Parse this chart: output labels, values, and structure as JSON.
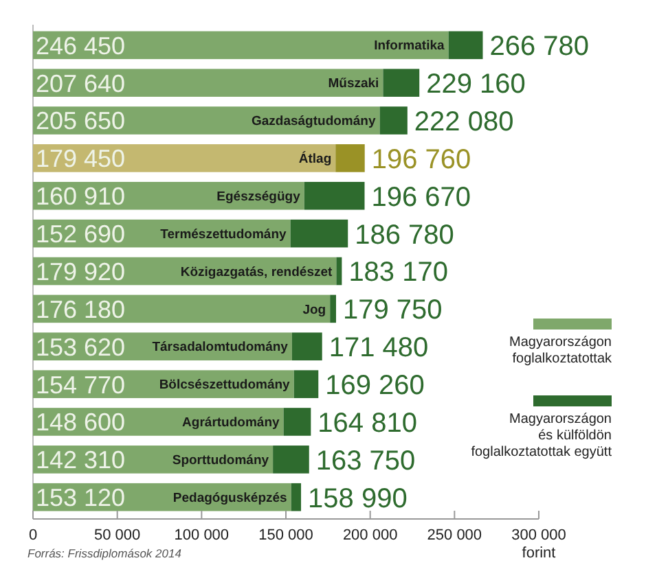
{
  "chart_data": {
    "type": "bar",
    "orientation": "horizontal",
    "stacked": true,
    "categories": [
      "Informatika",
      "Műszaki",
      "Gazdaságtudomány",
      "Átlag",
      "Egészségügy",
      "Természettudomány",
      "Közigazgatás, rendészet",
      "Jog",
      "Társadalomtudomány",
      "Bölcsészettudomány",
      "Agrártudomány",
      "Sporttudomány",
      "Pedagógusképzés"
    ],
    "series": [
      {
        "name": "Magyarországon\nfoglalkoztatottak",
        "color": "#7fa86b",
        "colors": [
          "#7fa86b",
          "#7fa86b",
          "#7fa86b",
          "#c4b870",
          "#7fa86b",
          "#7fa86b",
          "#7fa86b",
          "#7fa86b",
          "#7fa86b",
          "#7fa86b",
          "#7fa86b",
          "#7fa86b",
          "#7fa86b"
        ],
        "values": [
          246450,
          207640,
          205650,
          179450,
          160910,
          152690,
          179920,
          176180,
          153620,
          154770,
          148600,
          142310,
          153120
        ],
        "value_labels": [
          "246 450",
          "207 640",
          "205 650",
          "179 450",
          "160 910",
          "152 690",
          "179 920",
          "176 180",
          "153 620",
          "154 770",
          "148 600",
          "142 310",
          "153 120"
        ]
      },
      {
        "name": "Magyarországon\nés külföldön\nfoglalkoztatottak együtt",
        "color": "#2e6b2e",
        "colors": [
          "#2e6b2e",
          "#2e6b2e",
          "#2e6b2e",
          "#9a9226",
          "#2e6b2e",
          "#2e6b2e",
          "#2e6b2e",
          "#2e6b2e",
          "#2e6b2e",
          "#2e6b2e",
          "#2e6b2e",
          "#2e6b2e",
          "#2e6b2e"
        ],
        "values": [
          20330,
          21520,
          16430,
          17310,
          35760,
          34090,
          3250,
          3570,
          17860,
          14490,
          16210,
          21440,
          5870
        ]
      }
    ],
    "totals": [
      "266 780",
      "229 160",
      "222 080",
      "196 760",
      "196 670",
      "186 780",
      "183 170",
      "179 750",
      "171 480",
      "169 260",
      "164 810",
      "163 750",
      "158 990"
    ],
    "xlim": [
      0,
      300000
    ],
    "xticks": [
      0,
      {
        "value": 50000,
        "label": "50 000"
      },
      {
        "value": 100000,
        "label": "100 000"
      },
      {
        "value": 150000,
        "label": "150 000"
      },
      {
        "value": 200000,
        "label": "200 000"
      },
      {
        "value": 250000,
        "label": "250 000"
      },
      {
        "value": 300000,
        "label": "300 000"
      }
    ],
    "xlabel": "forint",
    "legend": "right",
    "annotations": [
      "Forrás: Frissdiplomások 2014"
    ]
  }
}
